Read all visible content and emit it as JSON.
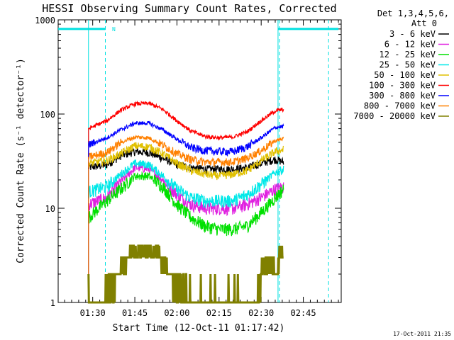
{
  "chart_data": {
    "type": "line",
    "title": "HESSI Observing Summary Count Rates, Corrected",
    "xlabel": "Start Time (12-Oct-11 01:17:42)",
    "ylabel": "Corrected Count Rate (s⁻¹ detector⁻¹)",
    "yscale": "log",
    "ylim": [
      1,
      1000
    ],
    "xlim": [
      "01:17:42",
      "02:58:30"
    ],
    "x_ticks": [
      "01:30",
      "01:45",
      "02:00",
      "02:15",
      "02:30",
      "02:45"
    ],
    "y_ticks": [
      "1",
      "10",
      "100",
      "1000"
    ],
    "legend_title": [
      "Det 1,3,4,5,6,",
      "Att 0"
    ],
    "legend_position": "right",
    "footer": "17-Oct-2011 21:35",
    "night_marker": "N",
    "vertical_lines": [
      {
        "time": "01:28:30",
        "style": "solid",
        "color": "#00e0e0"
      },
      {
        "time": "01:34:30",
        "style": "dashed",
        "color": "#00e0e0"
      },
      {
        "time": "02:36:00",
        "style": "solid",
        "color": "#00e0e0"
      },
      {
        "time": "02:36:30",
        "style": "dashed",
        "color": "#00e0e0"
      },
      {
        "time": "02:54:00",
        "style": "dashed",
        "color": "#00e0e0"
      }
    ],
    "horizontal_bars": [
      {
        "from": "01:17:42",
        "to": "01:34:30",
        "value": 800,
        "color": "#00e0e0"
      },
      {
        "from": "02:36:00",
        "to": "02:57:30",
        "value": 800,
        "color": "#00e0e0"
      }
    ],
    "series": [
      {
        "name": "3 - 6 keV",
        "color": "#000000",
        "x": [
          "01:28:30",
          "01:35",
          "01:40",
          "01:45",
          "01:50",
          "01:55",
          "02:00",
          "02:05",
          "02:10",
          "02:15",
          "02:20",
          "02:25",
          "02:30",
          "02:35",
          "02:38"
        ],
        "y": [
          27,
          29,
          36,
          40,
          39,
          34,
          29,
          27,
          26,
          26,
          26,
          27,
          30,
          33,
          31
        ]
      },
      {
        "name": "6 - 12 keV",
        "color": "#e020e0",
        "x": [
          "01:28:30",
          "01:35",
          "01:40",
          "01:45",
          "01:50",
          "01:55",
          "02:00",
          "02:05",
          "02:10",
          "02:15",
          "02:20",
          "02:25",
          "02:30",
          "02:35",
          "02:38"
        ],
        "y": [
          11,
          13,
          19,
          27,
          26,
          20,
          14,
          11,
          10,
          10,
          10,
          11,
          13,
          16,
          17
        ]
      },
      {
        "name": "12 - 25 keV",
        "color": "#00e000",
        "x": [
          "01:28:30",
          "01:35",
          "01:40",
          "01:45",
          "01:50",
          "01:55",
          "02:00",
          "02:05",
          "02:10",
          "02:15",
          "02:20",
          "02:25",
          "02:30",
          "02:35",
          "02:38"
        ],
        "y": [
          8,
          12,
          16,
          22,
          22,
          17,
          11,
          8,
          6.5,
          6,
          6,
          6.5,
          9,
          13,
          16
        ]
      },
      {
        "name": "25 - 50 keV",
        "color": "#00e8e8",
        "x": [
          "01:28:30",
          "01:35",
          "01:40",
          "01:45",
          "01:50",
          "01:55",
          "02:00",
          "02:05",
          "02:10",
          "02:15",
          "02:20",
          "02:25",
          "02:30",
          "02:35",
          "02:38"
        ],
        "y": [
          15,
          17,
          23,
          30,
          29,
          22,
          16,
          13,
          12,
          12,
          12,
          14,
          18,
          24,
          26
        ]
      },
      {
        "name": "50 - 100 keV",
        "color": "#e0c000",
        "x": [
          "01:28:30",
          "01:35",
          "01:40",
          "01:45",
          "01:50",
          "01:55",
          "02:00",
          "02:05",
          "02:10",
          "02:15",
          "02:20",
          "02:25",
          "02:30",
          "02:35",
          "02:38"
        ],
        "y": [
          30,
          32,
          38,
          46,
          45,
          38,
          30,
          25,
          23,
          22,
          23,
          25,
          32,
          40,
          42
        ]
      },
      {
        "name": "100 - 300 keV",
        "color": "#ff0000",
        "x": [
          "01:28:30",
          "01:35",
          "01:40",
          "01:45",
          "01:50",
          "01:55",
          "02:00",
          "02:05",
          "02:10",
          "02:15",
          "02:20",
          "02:25",
          "02:30",
          "02:35",
          "02:38"
        ],
        "y": [
          70,
          85,
          110,
          128,
          130,
          112,
          85,
          66,
          58,
          56,
          57,
          65,
          85,
          108,
          112
        ]
      },
      {
        "name": "300 - 800 keV",
        "color": "#0000ff",
        "x": [
          "01:28:30",
          "01:35",
          "01:40",
          "01:45",
          "01:50",
          "01:55",
          "02:00",
          "02:05",
          "02:10",
          "02:15",
          "02:20",
          "02:25",
          "02:30",
          "02:35",
          "02:38"
        ],
        "y": [
          47,
          56,
          68,
          80,
          80,
          68,
          54,
          44,
          41,
          40,
          40,
          45,
          56,
          72,
          74
        ]
      },
      {
        "name": "800 - 7000 keV",
        "color": "#ff8000",
        "x": [
          "01:28:30",
          "01:35",
          "01:40",
          "01:45",
          "01:50",
          "01:55",
          "02:00",
          "02:05",
          "02:10",
          "02:15",
          "02:20",
          "02:25",
          "02:30",
          "02:35",
          "02:38"
        ],
        "y": [
          35,
          39,
          50,
          57,
          56,
          47,
          38,
          33,
          31,
          31,
          31,
          34,
          41,
          52,
          55
        ]
      },
      {
        "name": "7000 - 20000 keV",
        "color": "#808000",
        "x": [
          "01:28:30",
          "01:34",
          "01:35",
          "01:39",
          "01:42",
          "01:44",
          "01:50",
          "01:53",
          "01:56",
          "01:59",
          "02:02",
          "02:04",
          "02:05",
          "02:28",
          "02:30",
          "02:33",
          "02:35",
          "02:37",
          "02:38"
        ],
        "y": [
          1,
          1,
          1.3,
          2,
          3,
          3.6,
          3.6,
          3.3,
          2.6,
          1.6,
          1.2,
          1,
          1,
          1,
          2,
          3,
          2,
          3.5,
          3
        ]
      }
    ]
  }
}
